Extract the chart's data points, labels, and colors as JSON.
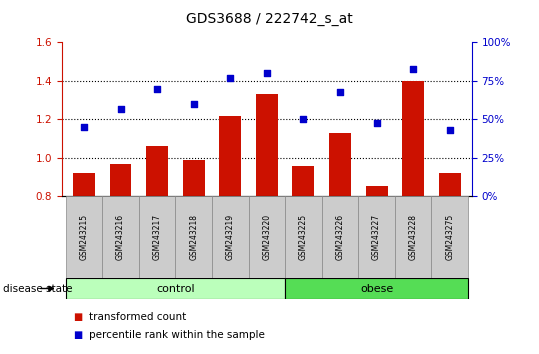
{
  "title": "GDS3688 / 222742_s_at",
  "samples": [
    "GSM243215",
    "GSM243216",
    "GSM243217",
    "GSM243218",
    "GSM243219",
    "GSM243220",
    "GSM243225",
    "GSM243226",
    "GSM243227",
    "GSM243228",
    "GSM243275"
  ],
  "transformed_count": [
    0.92,
    0.97,
    1.06,
    0.99,
    1.22,
    1.33,
    0.96,
    1.13,
    0.855,
    1.4,
    0.92
  ],
  "percentile_rank": [
    45,
    57,
    70,
    60,
    77,
    80,
    50,
    68,
    48,
    83,
    43
  ],
  "bar_color": "#cc1100",
  "dot_color": "#0000cc",
  "left_ylim": [
    0.8,
    1.6
  ],
  "right_ylim": [
    0,
    100
  ],
  "left_yticks": [
    0.8,
    1.0,
    1.2,
    1.4,
    1.6
  ],
  "right_ytick_labels": [
    "0%",
    "25%",
    "50%",
    "75%",
    "100%"
  ],
  "right_ytick_vals": [
    0,
    25,
    50,
    75,
    100
  ],
  "grid_vals": [
    1.0,
    1.2,
    1.4
  ],
  "control_n": 6,
  "obese_n": 5,
  "control_color": "#bbffbb",
  "obese_color": "#55dd55",
  "label_bar": "transformed count",
  "label_dot": "percentile rank within the sample",
  "disease_state_label": "disease state",
  "background_color": "#ffffff",
  "sample_band_color": "#cccccc",
  "title_fontsize": 10,
  "tick_fontsize": 7.5
}
